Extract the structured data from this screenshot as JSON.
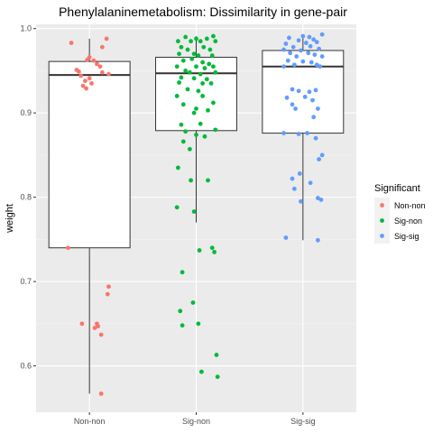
{
  "chart_data": {
    "type": "boxplot",
    "title": "Phenylalaninemetabolism: Dissimilarity in gene-pair",
    "xlabel": "",
    "ylabel": "weight",
    "ylim": [
      0.545,
      1.005
    ],
    "yticks": [
      0.6,
      0.7,
      0.8,
      0.9,
      1.0
    ],
    "ytick_labels": [
      "0.6",
      "0.7",
      "0.8",
      "0.9",
      "1.0"
    ],
    "grid": true,
    "legend_position": "right",
    "legend_title": "Significant",
    "categories": [
      "Non-non",
      "Sig-non",
      "Sig-sig"
    ],
    "series": [
      {
        "name": "Non-non",
        "color": "#F8766D",
        "box": {
          "min": 0.567,
          "q1": 0.74,
          "median": 0.945,
          "q3": 0.961,
          "max": 0.988
        },
        "points": [
          [
            -0.17,
            0.983
          ],
          [
            0.16,
            0.988
          ],
          [
            0.12,
            0.978
          ],
          [
            0.0,
            0.966
          ],
          [
            -0.02,
            0.963
          ],
          [
            0.04,
            0.962
          ],
          [
            0.07,
            0.958
          ],
          [
            0.1,
            0.955
          ],
          [
            -0.12,
            0.951
          ],
          [
            -0.1,
            0.949
          ],
          [
            0.12,
            0.948
          ],
          [
            0.18,
            0.946
          ],
          [
            -0.08,
            0.944
          ],
          [
            0.0,
            0.941
          ],
          [
            -0.04,
            0.938
          ],
          [
            0.02,
            0.935
          ],
          [
            -0.06,
            0.932
          ],
          [
            -0.03,
            0.929
          ],
          [
            -0.2,
            0.74
          ],
          [
            0.18,
            0.694
          ],
          [
            0.17,
            0.685
          ],
          [
            -0.07,
            0.65
          ],
          [
            0.07,
            0.65
          ],
          [
            0.08,
            0.647
          ],
          [
            0.05,
            0.645
          ],
          [
            0.11,
            0.637
          ],
          [
            0.11,
            0.567
          ]
        ]
      },
      {
        "name": "Sig-non",
        "color": "#00BA38",
        "box": {
          "min": 0.77,
          "q1": 0.879,
          "median": 0.947,
          "q3": 0.966,
          "max": 0.991
        },
        "points": [
          [
            -0.17,
            0.985
          ],
          [
            -0.1,
            0.99
          ],
          [
            -0.05,
            0.985
          ],
          [
            0.0,
            0.988
          ],
          [
            0.04,
            0.985
          ],
          [
            0.1,
            0.988
          ],
          [
            0.16,
            0.991
          ],
          [
            0.18,
            0.985
          ],
          [
            -0.14,
            0.978
          ],
          [
            -0.08,
            0.975
          ],
          [
            0.07,
            0.978
          ],
          [
            0.13,
            0.975
          ],
          [
            -0.16,
            0.97
          ],
          [
            -0.02,
            0.97
          ],
          [
            0.02,
            0.968
          ],
          [
            0.15,
            0.968
          ],
          [
            -0.12,
            0.962
          ],
          [
            -0.04,
            0.964
          ],
          [
            0.06,
            0.96
          ],
          [
            0.12,
            0.958
          ],
          [
            -0.18,
            0.955
          ],
          [
            0.0,
            0.955
          ],
          [
            0.08,
            0.953
          ],
          [
            0.16,
            0.955
          ],
          [
            -0.1,
            0.95
          ],
          [
            -0.06,
            0.948
          ],
          [
            0.04,
            0.946
          ],
          [
            0.18,
            0.948
          ],
          [
            -0.14,
            0.942
          ],
          [
            -0.02,
            0.941
          ],
          [
            0.1,
            0.94
          ],
          [
            -0.16,
            0.936
          ],
          [
            0.06,
            0.935
          ],
          [
            0.14,
            0.935
          ],
          [
            -0.08,
            0.928
          ],
          [
            0.02,
            0.926
          ],
          [
            -0.18,
            0.92
          ],
          [
            0.06,
            0.92
          ],
          [
            0.16,
            0.912
          ],
          [
            -0.12,
            0.91
          ],
          [
            0.0,
            0.905
          ],
          [
            0.11,
            0.903
          ],
          [
            -0.02,
            0.9
          ],
          [
            -0.14,
            0.886
          ],
          [
            0.04,
            0.887
          ],
          [
            0.18,
            0.88
          ],
          [
            -0.1,
            0.878
          ],
          [
            0.0,
            0.874
          ],
          [
            0.08,
            0.872
          ],
          [
            -0.12,
            0.866
          ],
          [
            -0.06,
            0.857
          ],
          [
            -0.17,
            0.835
          ],
          [
            -0.05,
            0.82
          ],
          [
            0.11,
            0.82
          ],
          [
            -0.18,
            0.788
          ],
          [
            -0.02,
            0.783
          ],
          [
            0.15,
            0.74
          ],
          [
            0.03,
            0.737
          ],
          [
            0.17,
            0.735
          ],
          [
            -0.13,
            0.711
          ],
          [
            -0.03,
            0.675
          ],
          [
            -0.15,
            0.665
          ],
          [
            -0.13,
            0.648
          ],
          [
            0.02,
            0.65
          ],
          [
            0.19,
            0.613
          ],
          [
            0.05,
            0.593
          ],
          [
            0.2,
            0.587
          ]
        ]
      },
      {
        "name": "Sig-sig",
        "color": "#619CFF",
        "box": {
          "min": 0.749,
          "q1": 0.876,
          "median": 0.955,
          "q3": 0.974,
          "max": 0.993
        },
        "points": [
          [
            -0.13,
            0.989
          ],
          [
            0.0,
            0.991
          ],
          [
            0.06,
            0.99
          ],
          [
            0.18,
            0.993
          ],
          [
            -0.04,
            0.986
          ],
          [
            0.1,
            0.987
          ],
          [
            -0.16,
            0.982
          ],
          [
            0.03,
            0.983
          ],
          [
            0.13,
            0.984
          ],
          [
            -0.09,
            0.978
          ],
          [
            0.07,
            0.979
          ],
          [
            -0.18,
            0.975
          ],
          [
            -0.02,
            0.974
          ],
          [
            0.15,
            0.976
          ],
          [
            -0.12,
            0.971
          ],
          [
            0.05,
            0.971
          ],
          [
            0.11,
            0.969
          ],
          [
            -0.06,
            0.967
          ],
          [
            0.18,
            0.967
          ],
          [
            -0.14,
            0.962
          ],
          [
            0.0,
            0.961
          ],
          [
            0.08,
            0.96
          ],
          [
            -0.08,
            0.957
          ],
          [
            0.13,
            0.957
          ],
          [
            -0.18,
            0.955
          ],
          [
            0.16,
            0.955
          ],
          [
            -0.1,
            0.928
          ],
          [
            -0.04,
            0.926
          ],
          [
            0.06,
            0.925
          ],
          [
            0.12,
            0.927
          ],
          [
            -0.15,
            0.918
          ],
          [
            0.02,
            0.919
          ],
          [
            0.09,
            0.915
          ],
          [
            -0.1,
            0.91
          ],
          [
            -0.07,
            0.905
          ],
          [
            0.14,
            0.905
          ],
          [
            0.1,
            0.895
          ],
          [
            -0.18,
            0.876
          ],
          [
            0.04,
            0.876
          ],
          [
            -0.04,
            0.875
          ],
          [
            0.12,
            0.87
          ],
          [
            0.18,
            0.85
          ],
          [
            0.15,
            0.845
          ],
          [
            -0.03,
            0.828
          ],
          [
            -0.1,
            0.822
          ],
          [
            0.07,
            0.817
          ],
          [
            0.14,
            0.799
          ],
          [
            0.17,
            0.797
          ],
          [
            -0.08,
            0.81
          ],
          [
            -0.02,
            0.795
          ],
          [
            -0.16,
            0.752
          ],
          [
            0.14,
            0.749
          ]
        ]
      }
    ]
  }
}
